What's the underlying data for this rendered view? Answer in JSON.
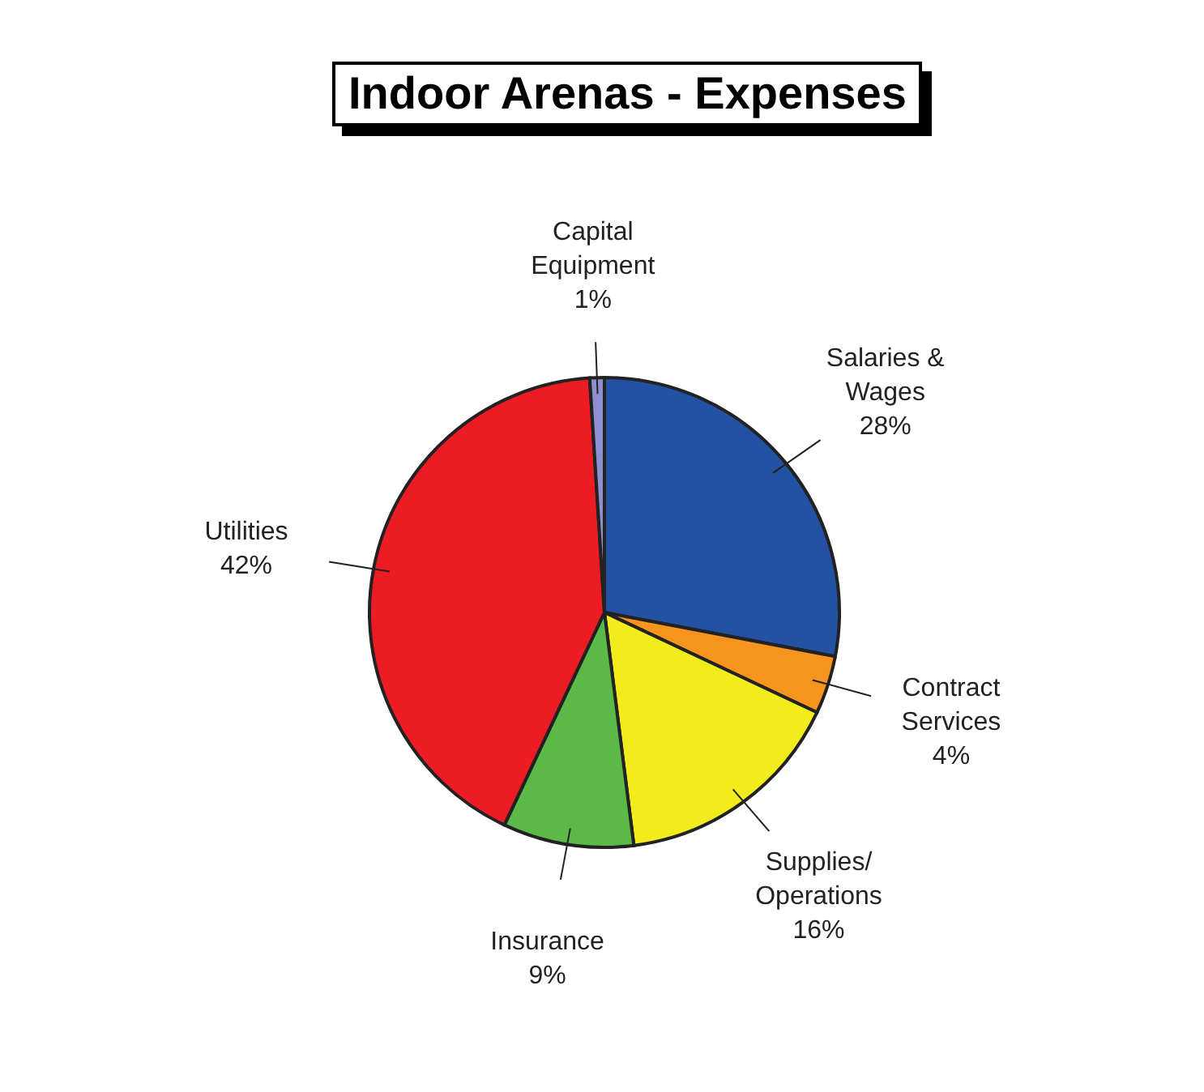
{
  "chart_data": {
    "type": "pie",
    "title": "Indoor Arenas - Expenses",
    "categories": [
      "Salaries & Wages",
      "Contract Services",
      "Supplies/Operations",
      "Insurance",
      "Utilities",
      "Capital Equipment"
    ],
    "values": [
      28,
      4,
      16,
      9,
      42,
      1
    ],
    "value_labels": [
      "28%",
      "4%",
      "16%",
      "9%",
      "42%",
      "1%"
    ],
    "colors": [
      "#2352a3",
      "#f7941d",
      "#f2ec1c",
      "#5bb947",
      "#ed1c24",
      "#8e8fd0"
    ]
  }
}
